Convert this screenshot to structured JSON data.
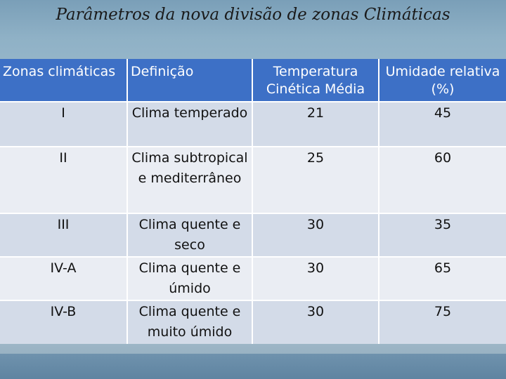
{
  "title": "Parâmetros da nova divisão de zonas Climáticas",
  "table": {
    "headers": {
      "zona": "Zonas climáticas",
      "definicao": "Definição",
      "temperatura": "Temperatura Cinética Média",
      "umidade": "Umidade relativa (%)"
    },
    "rows": [
      {
        "zona": "I",
        "definicao": "Clima temperado",
        "temperatura": "21",
        "umidade": "45"
      },
      {
        "zona": "II",
        "definicao": "Clima subtropical e mediterrâneo",
        "temperatura": "25",
        "umidade": "60"
      },
      {
        "zona": "III",
        "definicao": "Clima quente e seco",
        "temperatura": "30",
        "umidade": "35"
      },
      {
        "zona": "IV-A",
        "definicao": "Clima quente e úmido",
        "temperatura": "30",
        "umidade": "65"
      },
      {
        "zona": "IV-B",
        "definicao": "Clima quente e muito úmido",
        "temperatura": "30",
        "umidade": "75"
      }
    ]
  },
  "colors": {
    "header_bg": "#3d70c6",
    "row_dark": "#d3dbe8",
    "row_light": "#eaedf3"
  }
}
